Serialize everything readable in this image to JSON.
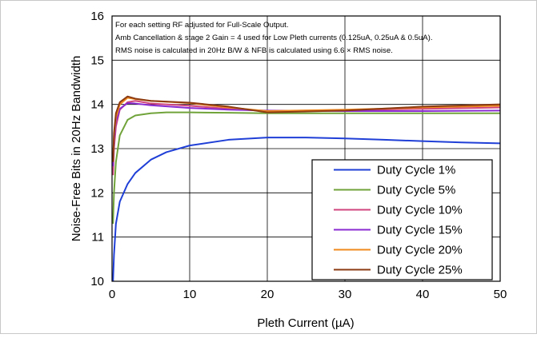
{
  "chart_data": {
    "type": "line",
    "xlabel": "Pleth Current (µA)",
    "ylabel": "Noise-Free Bits in 20Hz Bandwidth",
    "xlim": [
      0,
      50
    ],
    "ylim": [
      10,
      16
    ],
    "x_ticks": [
      0,
      10,
      20,
      30,
      40,
      50
    ],
    "y_ticks": [
      10,
      11,
      12,
      13,
      14,
      15,
      16
    ],
    "grid": true,
    "legend_position": "bottom-right",
    "annotations": [
      "For each setting RF adjusted for Full-Scale Output.",
      "Amb Cancellation & stage 2 Gain = 4 used for Low Pleth currents (0.125uA, 0.25uA & 0.5uA).",
      "RMS noise is calculated in 20Hz B/W & NFB is calculated using 6.6 × RMS noise."
    ],
    "series": [
      {
        "name": "Duty Cycle 1%",
        "color": "#1f3fd6",
        "points": [
          [
            0.125,
            10.0
          ],
          [
            0.25,
            10.6
          ],
          [
            0.5,
            11.3
          ],
          [
            1,
            11.8
          ],
          [
            2,
            12.2
          ],
          [
            3,
            12.45
          ],
          [
            5,
            12.75
          ],
          [
            7,
            12.92
          ],
          [
            10,
            13.07
          ],
          [
            15,
            13.2
          ],
          [
            20,
            13.25
          ],
          [
            25,
            13.25
          ],
          [
            30,
            13.23
          ],
          [
            35,
            13.2
          ],
          [
            40,
            13.17
          ],
          [
            45,
            13.14
          ],
          [
            50,
            13.12
          ]
        ]
      },
      {
        "name": "Duty Cycle 5%",
        "color": "#70a33a",
        "points": [
          [
            0.125,
            11.3
          ],
          [
            0.25,
            12.0
          ],
          [
            0.5,
            12.7
          ],
          [
            1,
            13.3
          ],
          [
            2,
            13.65
          ],
          [
            3,
            13.75
          ],
          [
            5,
            13.8
          ],
          [
            7,
            13.82
          ],
          [
            10,
            13.82
          ],
          [
            15,
            13.81
          ],
          [
            20,
            13.8
          ],
          [
            30,
            13.8
          ],
          [
            40,
            13.8
          ],
          [
            50,
            13.8
          ]
        ]
      },
      {
        "name": "Duty Cycle 10%",
        "color": "#d0457d",
        "points": [
          [
            0.125,
            12.4
          ],
          [
            0.25,
            13.0
          ],
          [
            0.5,
            13.5
          ],
          [
            1,
            13.88
          ],
          [
            2,
            14.05
          ],
          [
            3,
            14.08
          ],
          [
            5,
            14.02
          ],
          [
            10,
            13.97
          ],
          [
            15,
            13.9
          ],
          [
            20,
            13.85
          ],
          [
            30,
            13.87
          ],
          [
            40,
            13.9
          ],
          [
            50,
            13.93
          ]
        ]
      },
      {
        "name": "Duty Cycle 15%",
        "color": "#8a2bd1",
        "points": [
          [
            0.125,
            12.6
          ],
          [
            0.25,
            13.2
          ],
          [
            0.5,
            13.6
          ],
          [
            1,
            13.9
          ],
          [
            2,
            14.03
          ],
          [
            3,
            14.02
          ],
          [
            5,
            13.98
          ],
          [
            10,
            13.92
          ],
          [
            15,
            13.88
          ],
          [
            20,
            13.86
          ],
          [
            30,
            13.85
          ],
          [
            40,
            13.85
          ],
          [
            50,
            13.86
          ]
        ]
      },
      {
        "name": "Duty Cycle 20%",
        "color": "#f08a1e",
        "points": [
          [
            0.125,
            12.7
          ],
          [
            0.25,
            13.3
          ],
          [
            0.5,
            13.7
          ],
          [
            1,
            14.0
          ],
          [
            2,
            14.15
          ],
          [
            3,
            14.12
          ],
          [
            5,
            14.08
          ],
          [
            10,
            14.03
          ],
          [
            15,
            13.93
          ],
          [
            20,
            13.85
          ],
          [
            30,
            13.88
          ],
          [
            40,
            13.93
          ],
          [
            50,
            13.97
          ]
        ]
      },
      {
        "name": "Duty Cycle 25%",
        "color": "#8b3a12",
        "points": [
          [
            0.125,
            12.7
          ],
          [
            0.25,
            13.35
          ],
          [
            0.5,
            13.8
          ],
          [
            1,
            14.05
          ],
          [
            2,
            14.18
          ],
          [
            3,
            14.13
          ],
          [
            5,
            14.08
          ],
          [
            10,
            14.04
          ],
          [
            15,
            13.95
          ],
          [
            20,
            13.82
          ],
          [
            30,
            13.86
          ],
          [
            40,
            13.95
          ],
          [
            50,
            14.0
          ]
        ]
      }
    ]
  }
}
